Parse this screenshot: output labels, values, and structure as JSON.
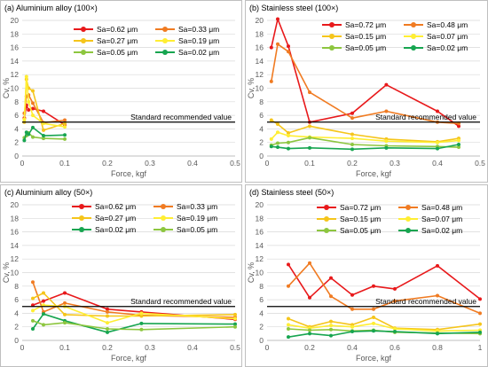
{
  "chart_data": [
    {
      "type": "line",
      "title": "(a) Aluminium alloy (100×)",
      "xlabel": "Force, kgf",
      "ylabel": "Cv, %",
      "xlim": [
        0,
        0.5
      ],
      "ylim": [
        0,
        20
      ],
      "xticks": [
        "0",
        "0.1",
        "0.2",
        "0.3",
        "0.4",
        "0.5"
      ],
      "yticks": [
        "0",
        "2",
        "4",
        "6",
        "8",
        "10",
        "12",
        "14",
        "16",
        "18",
        "20"
      ],
      "reference": {
        "value": 5,
        "label": "Standard recommended value"
      },
      "series": [
        {
          "name": "Sa=0.62 μm",
          "color": "#e8191b",
          "points": [
            [
              0.005,
              5.6
            ],
            [
              0.01,
              7.5
            ],
            [
              0.015,
              6.8
            ],
            [
              0.025,
              7.0
            ],
            [
              0.05,
              6.6
            ],
            [
              0.1,
              4.6
            ]
          ]
        },
        {
          "name": "Sa=0.33 μm",
          "color": "#f07b22",
          "points": [
            [
              0.005,
              6.3
            ],
            [
              0.01,
              8.8
            ],
            [
              0.015,
              9.0
            ],
            [
              0.025,
              7.8
            ],
            [
              0.05,
              4.9
            ],
            [
              0.1,
              5.3
            ]
          ]
        },
        {
          "name": "Sa=0.27 μm",
          "color": "#f5c51b",
          "points": [
            [
              0.005,
              5.0
            ],
            [
              0.01,
              11.3
            ],
            [
              0.015,
              10.0
            ],
            [
              0.025,
              9.6
            ],
            [
              0.05,
              3.8
            ],
            [
              0.1,
              4.8
            ]
          ]
        },
        {
          "name": "Sa=0.19 μm",
          "color": "#ffee33",
          "points": [
            [
              0.005,
              5.4
            ],
            [
              0.01,
              11.7
            ],
            [
              0.015,
              8.0
            ],
            [
              0.025,
              6.0
            ],
            [
              0.05,
              4.8
            ],
            [
              0.1,
              4.3
            ]
          ]
        },
        {
          "name": "Sa=0.05 μm",
          "color": "#8dc63f",
          "points": [
            [
              0.005,
              2.7
            ],
            [
              0.01,
              3.0
            ],
            [
              0.015,
              3.4
            ],
            [
              0.025,
              2.8
            ],
            [
              0.05,
              2.6
            ],
            [
              0.1,
              2.5
            ]
          ]
        },
        {
          "name": "Sa=0.02 μm",
          "color": "#17a550",
          "points": [
            [
              0.005,
              2.3
            ],
            [
              0.01,
              3.5
            ],
            [
              0.015,
              3.2
            ],
            [
              0.025,
              4.2
            ],
            [
              0.05,
              3.0
            ],
            [
              0.1,
              3.1
            ]
          ]
        }
      ]
    },
    {
      "type": "line",
      "title": "(b) Stainless steel (100×)",
      "xlabel": "Force, kgf",
      "ylabel": "Cv, %",
      "xlim": [
        0,
        0.5
      ],
      "ylim": [
        0,
        20
      ],
      "xticks": [
        "0",
        "0.1",
        "0.2",
        "0.3",
        "0.4",
        "0.5"
      ],
      "yticks": [
        "0",
        "2",
        "4",
        "6",
        "8",
        "10",
        "12",
        "14",
        "16",
        "18",
        "20"
      ],
      "reference": {
        "value": 5,
        "label": "Standard recommended value"
      },
      "series": [
        {
          "name": "Sa=0.72 μm",
          "color": "#e8191b",
          "points": [
            [
              0.01,
              16.0
            ],
            [
              0.025,
              20.2
            ],
            [
              0.05,
              16.2
            ],
            [
              0.1,
              5.0
            ],
            [
              0.2,
              6.3
            ],
            [
              0.28,
              10.5
            ],
            [
              0.4,
              6.6
            ],
            [
              0.45,
              4.4
            ]
          ]
        },
        {
          "name": "Sa=0.48 μm",
          "color": "#f07b22",
          "points": [
            [
              0.01,
              11.0
            ],
            [
              0.025,
              16.5
            ],
            [
              0.05,
              15.4
            ],
            [
              0.1,
              9.4
            ],
            [
              0.2,
              5.6
            ],
            [
              0.28,
              6.6
            ],
            [
              0.4,
              5.0
            ],
            [
              0.45,
              4.8
            ]
          ]
        },
        {
          "name": "Sa=0.15 μm",
          "color": "#f5c51b",
          "points": [
            [
              0.01,
              5.3
            ],
            [
              0.025,
              4.7
            ],
            [
              0.05,
              3.4
            ],
            [
              0.1,
              4.4
            ],
            [
              0.2,
              3.2
            ],
            [
              0.28,
              2.5
            ],
            [
              0.4,
              2.1
            ],
            [
              0.45,
              2.6
            ]
          ]
        },
        {
          "name": "Sa=0.07 μm",
          "color": "#ffee33",
          "points": [
            [
              0.01,
              2.5
            ],
            [
              0.025,
              3.5
            ],
            [
              0.05,
              3.0
            ],
            [
              0.1,
              2.8
            ],
            [
              0.2,
              2.6
            ],
            [
              0.28,
              2.2
            ],
            [
              0.4,
              2.0
            ],
            [
              0.45,
              2.3
            ]
          ]
        },
        {
          "name": "Sa=0.05 μm",
          "color": "#8dc63f",
          "points": [
            [
              0.01,
              1.6
            ],
            [
              0.025,
              1.9
            ],
            [
              0.05,
              2.0
            ],
            [
              0.1,
              2.7
            ],
            [
              0.2,
              1.7
            ],
            [
              0.28,
              1.5
            ],
            [
              0.4,
              1.4
            ],
            [
              0.45,
              1.3
            ]
          ]
        },
        {
          "name": "Sa=0.02 μm",
          "color": "#17a550",
          "points": [
            [
              0.01,
              1.4
            ],
            [
              0.025,
              1.3
            ],
            [
              0.05,
              1.1
            ],
            [
              0.1,
              1.2
            ],
            [
              0.2,
              1.0
            ],
            [
              0.28,
              1.2
            ],
            [
              0.4,
              1.1
            ],
            [
              0.45,
              1.7
            ]
          ]
        }
      ]
    },
    {
      "type": "line",
      "title": "(c) Aluminium alloy (50×)",
      "xlabel": "Force, kgf",
      "ylabel": "Cv, %",
      "xlim": [
        0,
        0.5
      ],
      "ylim": [
        0,
        20
      ],
      "xticks": [
        "0",
        "0.1",
        "0.2",
        "0.3",
        "0.4",
        "0.5"
      ],
      "yticks": [
        "0",
        "2",
        "4",
        "6",
        "8",
        "10",
        "12",
        "14",
        "16",
        "18",
        "20"
      ],
      "reference": {
        "value": 5,
        "label": "Standard recommended value"
      },
      "series": [
        {
          "name": "Sa=0.62 μm",
          "color": "#e8191b",
          "points": [
            [
              0.025,
              5.2
            ],
            [
              0.05,
              5.8
            ],
            [
              0.1,
              7.0
            ],
            [
              0.2,
              4.6
            ],
            [
              0.28,
              4.2
            ],
            [
              0.5,
              3.1
            ]
          ]
        },
        {
          "name": "Sa=0.33 μm",
          "color": "#f07b22",
          "points": [
            [
              0.025,
              8.6
            ],
            [
              0.05,
              4.2
            ],
            [
              0.1,
              5.5
            ],
            [
              0.2,
              4.2
            ],
            [
              0.28,
              3.7
            ],
            [
              0.5,
              3.4
            ]
          ]
        },
        {
          "name": "Sa=0.27 μm",
          "color": "#f5c51b",
          "points": [
            [
              0.025,
              6.2
            ],
            [
              0.05,
              7.0
            ],
            [
              0.1,
              3.8
            ],
            [
              0.2,
              3.6
            ],
            [
              0.28,
              3.6
            ],
            [
              0.5,
              3.8
            ]
          ]
        },
        {
          "name": "Sa=0.19 μm",
          "color": "#ffee33",
          "points": [
            [
              0.025,
              4.4
            ],
            [
              0.05,
              5.2
            ],
            [
              0.1,
              5.0
            ],
            [
              0.2,
              2.6
            ],
            [
              0.28,
              4.0
            ],
            [
              0.5,
              3.2
            ]
          ]
        },
        {
          "name": "Sa=0.02 μm",
          "color": "#17a550",
          "points": [
            [
              0.025,
              1.7
            ],
            [
              0.05,
              3.9
            ],
            [
              0.1,
              2.9
            ],
            [
              0.2,
              1.2
            ],
            [
              0.28,
              2.5
            ],
            [
              0.5,
              2.4
            ]
          ]
        },
        {
          "name": "Sa=0.05 μm",
          "color": "#8dc63f",
          "points": [
            [
              0.025,
              2.9
            ],
            [
              0.05,
              2.3
            ],
            [
              0.1,
              2.6
            ],
            [
              0.2,
              1.7
            ],
            [
              0.28,
              1.6
            ],
            [
              0.5,
              2.0
            ]
          ]
        }
      ]
    },
    {
      "type": "line",
      "title": "(d) Stainless steel (50×)",
      "xlabel": "Force, kgf",
      "ylabel": "Cv, %",
      "xlim": [
        0,
        1
      ],
      "ylim": [
        0,
        20
      ],
      "xticks": [
        "0",
        "0.2",
        "0.4",
        "0.6",
        "0.8",
        "1"
      ],
      "yticks": [
        "0",
        "2",
        "4",
        "6",
        "8",
        "10",
        "12",
        "14",
        "16",
        "18",
        "20"
      ],
      "reference": {
        "value": 5,
        "label": "Standard recommended value"
      },
      "series": [
        {
          "name": "Sa=0.72 μm",
          "color": "#e8191b",
          "points": [
            [
              0.1,
              11.2
            ],
            [
              0.2,
              6.3
            ],
            [
              0.3,
              9.2
            ],
            [
              0.4,
              6.7
            ],
            [
              0.5,
              8.0
            ],
            [
              0.6,
              7.6
            ],
            [
              0.8,
              11.0
            ],
            [
              1.0,
              6.1
            ]
          ]
        },
        {
          "name": "Sa=0.48 μm",
          "color": "#f07b22",
          "points": [
            [
              0.1,
              8.0
            ],
            [
              0.2,
              11.4
            ],
            [
              0.3,
              6.5
            ],
            [
              0.4,
              4.6
            ],
            [
              0.5,
              4.6
            ],
            [
              0.6,
              5.8
            ],
            [
              0.8,
              6.6
            ],
            [
              1.0,
              4.0
            ]
          ]
        },
        {
          "name": "Sa=0.15 μm",
          "color": "#f5c51b",
          "points": [
            [
              0.1,
              3.2
            ],
            [
              0.2,
              2.0
            ],
            [
              0.3,
              2.8
            ],
            [
              0.4,
              2.3
            ],
            [
              0.5,
              3.4
            ],
            [
              0.6,
              1.8
            ],
            [
              0.8,
              1.6
            ],
            [
              1.0,
              2.4
            ]
          ]
        },
        {
          "name": "Sa=0.07 μm",
          "color": "#ffee33",
          "points": [
            [
              0.1,
              2.3
            ],
            [
              0.2,
              1.8
            ],
            [
              0.3,
              2.2
            ],
            [
              0.4,
              2.0
            ],
            [
              0.5,
              2.5
            ],
            [
              0.6,
              1.7
            ],
            [
              0.8,
              1.4
            ],
            [
              1.0,
              1.5
            ]
          ]
        },
        {
          "name": "Sa=0.05 μm",
          "color": "#8dc63f",
          "points": [
            [
              0.1,
              1.7
            ],
            [
              0.2,
              1.5
            ],
            [
              0.3,
              1.6
            ],
            [
              0.4,
              1.4
            ],
            [
              0.5,
              1.5
            ],
            [
              0.6,
              1.2
            ],
            [
              0.8,
              1.1
            ],
            [
              1.0,
              1.0
            ]
          ]
        },
        {
          "name": "Sa=0.02 μm",
          "color": "#17a550",
          "points": [
            [
              0.1,
              0.5
            ],
            [
              0.2,
              1.0
            ],
            [
              0.3,
              0.7
            ],
            [
              0.4,
              1.3
            ],
            [
              0.5,
              1.4
            ],
            [
              0.6,
              1.3
            ],
            [
              0.8,
              1.0
            ],
            [
              1.0,
              1.2
            ]
          ]
        }
      ]
    }
  ]
}
